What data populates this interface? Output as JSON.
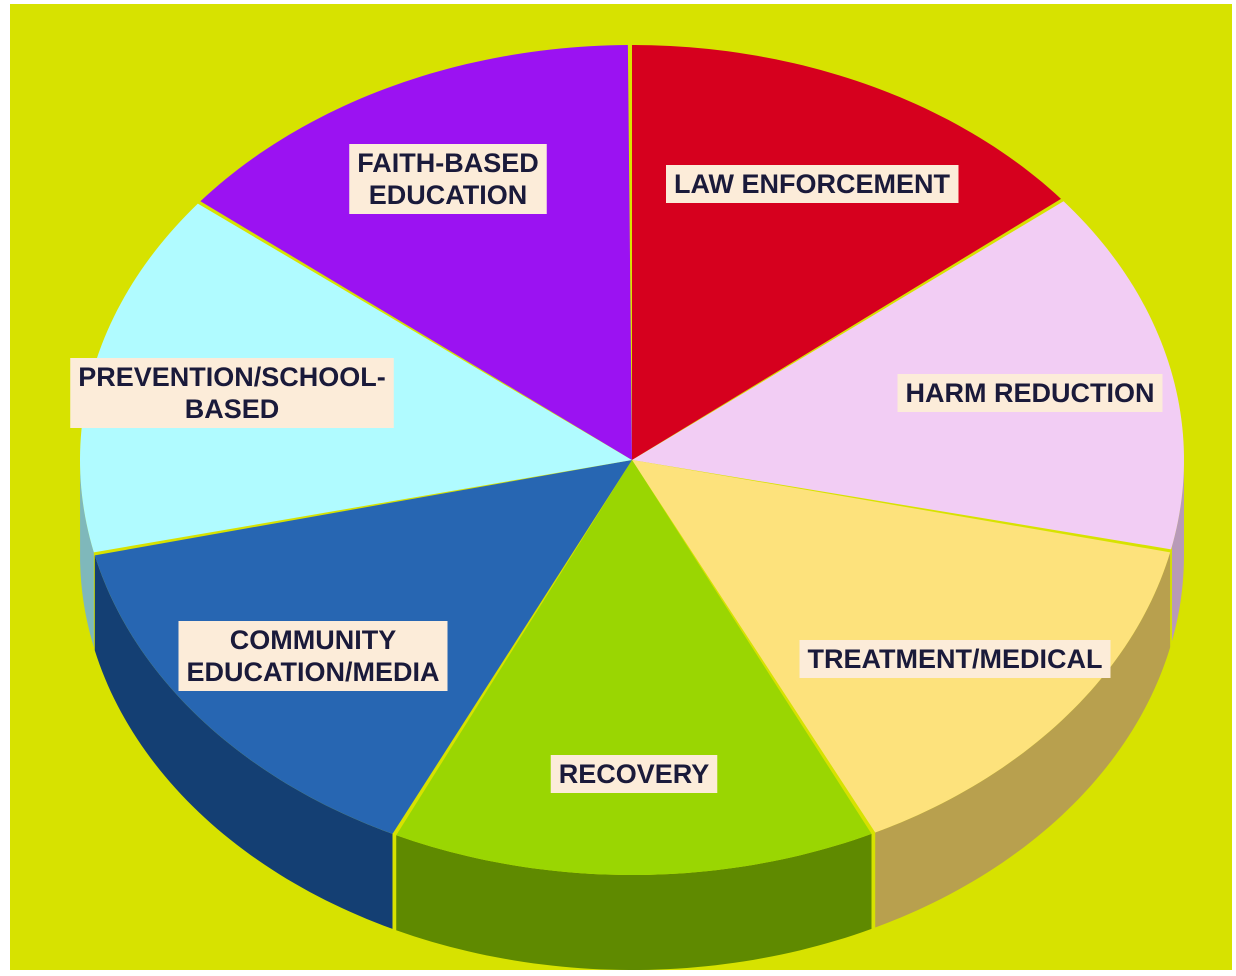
{
  "segments": [
    {
      "lines": [
        "LAW ENFORCEMENT"
      ],
      "color": "#d6001e",
      "side_color": "#8a0012"
    },
    {
      "lines": [
        "HARM REDUCTION"
      ],
      "color": "#f2cdf4",
      "side_color": "#b89ab8"
    },
    {
      "lines": [
        "TREATMENT/MEDICAL"
      ],
      "color": "#fde27c",
      "side_color": "#b8a04e"
    },
    {
      "lines": [
        "RECOVERY"
      ],
      "color": "#9ad602",
      "side_color": "#5f8a00"
    },
    {
      "lines": [
        "COMMUNITY",
        "EDUCATION/MEDIA"
      ],
      "color": "#2766b2",
      "side_color": "#143f73"
    },
    {
      "lines": [
        "PREVENTION/SCHOOL-",
        "BASED"
      ],
      "color": "#b0fbff",
      "side_color": "#7fb8bb"
    },
    {
      "lines": [
        "FAITH-BASED",
        "EDUCATION"
      ],
      "color": "#9b12f2",
      "side_color": "#5e0a94"
    }
  ]
}
